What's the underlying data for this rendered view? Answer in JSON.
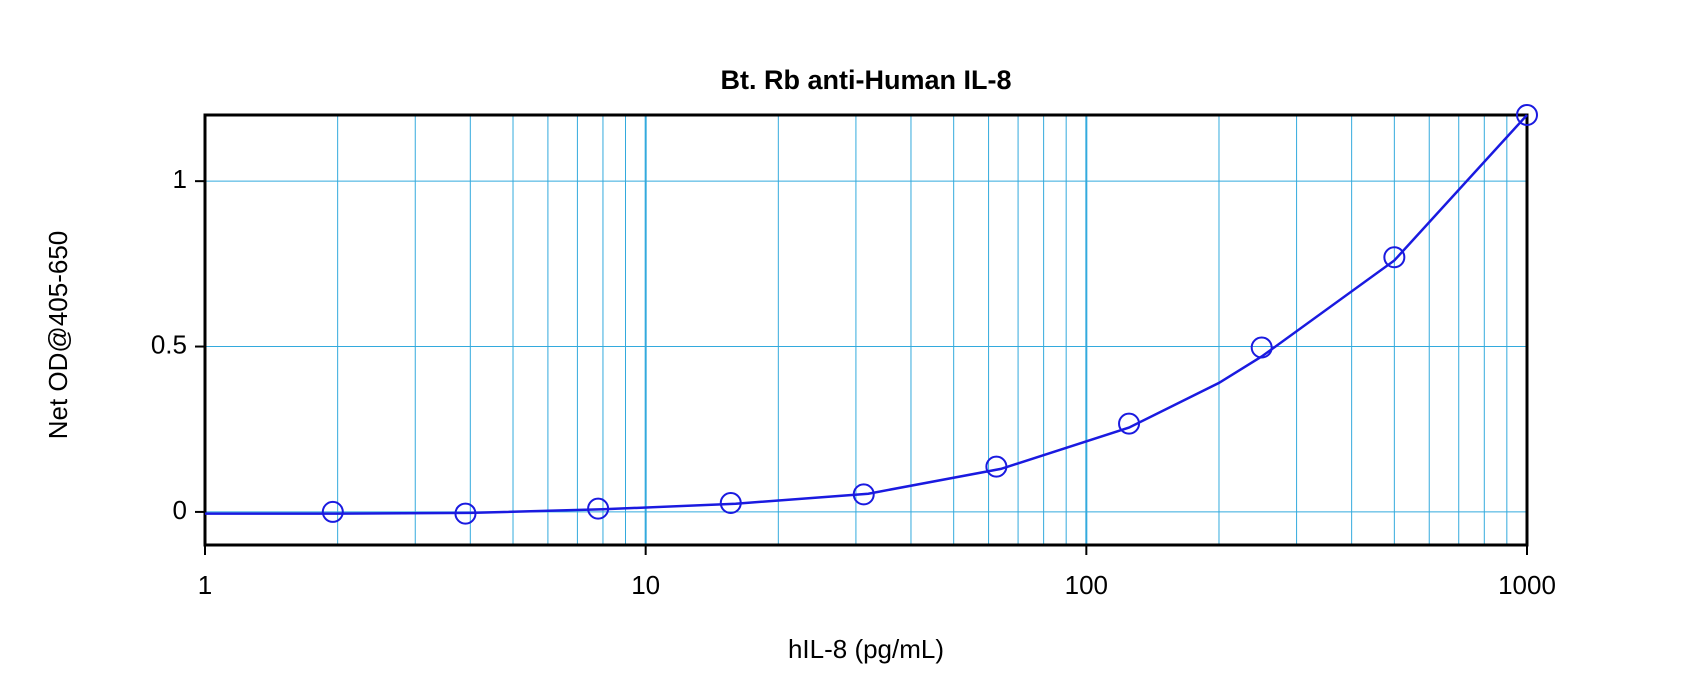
{
  "chart_data": {
    "type": "line",
    "title": "Bt. Rb anti-Human IL-8",
    "x_label": "hIL-8 (pg/mL)",
    "y_label": "Net OD@405-650",
    "xscale": "log",
    "xlim": [
      1,
      1000
    ],
    "xticks": [
      1,
      10,
      100,
      1000
    ],
    "xminorticks": [
      2,
      3,
      4,
      5,
      6,
      7,
      8,
      9,
      20,
      30,
      40,
      50,
      60,
      70,
      80,
      90,
      200,
      300,
      400,
      500,
      600,
      700,
      800,
      900
    ],
    "ylim": [
      -0.1,
      1.2
    ],
    "yticks": [
      0,
      0.5,
      1
    ],
    "grid": true,
    "grid_color": "#33aadd",
    "series": [
      {
        "color": "#1a1ae0",
        "marker": "circle",
        "x": [
          1.95,
          3.9,
          7.8,
          15.6,
          31.25,
          62.5,
          125,
          250,
          500,
          1000
        ],
        "values": [
          0.0,
          -0.005,
          0.01,
          0.027,
          0.053,
          0.137,
          0.267,
          0.497,
          0.77,
          1.2
        ]
      },
      {
        "color": "#1a1ae0",
        "marker": "none",
        "x": [
          1,
          2,
          4,
          8,
          16,
          32,
          64,
          125,
          200,
          250,
          500,
          1000
        ],
        "values": [
          -0.005,
          -0.005,
          -0.003,
          0.008,
          0.025,
          0.055,
          0.13,
          0.255,
          0.39,
          0.47,
          0.76,
          1.2
        ]
      }
    ]
  }
}
